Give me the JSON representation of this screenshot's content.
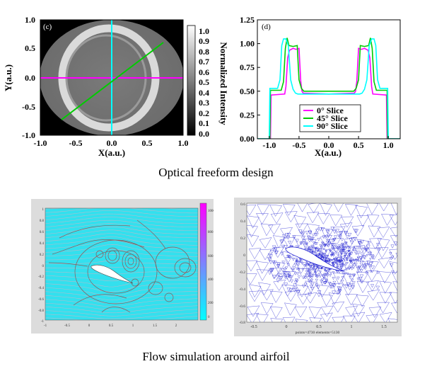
{
  "captions": {
    "top": "Optical freeform design",
    "bottom": "Flow simulation around airfoil"
  },
  "chart_data": [
    {
      "type": "heatmap",
      "panel_label": "(c)",
      "xlabel": "X(a.u.)",
      "ylabel": "Y(a.u.)",
      "xlim": [
        -1.0,
        1.0
      ],
      "ylim": [
        -1.0,
        1.0
      ],
      "xticks": [
        "-1.0",
        "-0.5",
        "0.0",
        "0.5",
        "1.0"
      ],
      "yticks": [
        "1.0",
        "0.5",
        "0.0",
        "-0.5",
        "-1.0"
      ],
      "colorbar": {
        "label": "Normalized Intensity",
        "ticks": [
          "1.0",
          "0.9",
          "0.8",
          "0.7",
          "0.6",
          "0.5",
          "0.4",
          "0.3",
          "0.2",
          "0.1",
          "0.0"
        ]
      },
      "slice_lines": [
        {
          "color": "#ff00ff",
          "from": [
            -1.0,
            0.0
          ],
          "to": [
            1.0,
            0.0
          ]
        },
        {
          "color": "#00ffff",
          "from": [
            0.0,
            -1.0
          ],
          "to": [
            0.0,
            1.0
          ]
        },
        {
          "color": "#00cc00",
          "from": [
            -0.7,
            -0.6
          ],
          "to": [
            0.72,
            0.62
          ]
        }
      ],
      "colors": {
        "background": "#000000",
        "ellipse": "#737373",
        "ring": "#dedede"
      }
    },
    {
      "type": "line",
      "panel_label": "(d)",
      "xlabel": "X(a.u.)",
      "xlim": [
        -1.2,
        1.2
      ],
      "ylim": [
        0.0,
        1.25
      ],
      "xticks": [
        "-1.0",
        "-0.5",
        "0.0",
        "0.5",
        "1.0"
      ],
      "xtick_values": [
        -1.0,
        -0.5,
        0.0,
        0.5,
        1.0
      ],
      "yticks": [
        "0.00",
        "0.25",
        "0.50",
        "0.75",
        "1.00",
        "1.25"
      ],
      "ytick_values": [
        0.0,
        0.25,
        0.5,
        0.75,
        1.0,
        1.25
      ],
      "legend": {
        "position": "bottom-center",
        "entries": [
          "0° Slice",
          "45° Slice",
          "90° Slice"
        ]
      },
      "series": [
        {
          "name": "0° Slice",
          "color": "#ff00ff",
          "x": [
            -1.2,
            -0.98,
            -0.97,
            -0.74,
            -0.72,
            -0.69,
            -0.66,
            -0.6,
            -0.55,
            -0.5,
            -0.47,
            -0.45,
            -0.43,
            0.0,
            0.43,
            0.45,
            0.47,
            0.5,
            0.55,
            0.6,
            0.66,
            0.69,
            0.72,
            0.74,
            0.97,
            0.98,
            1.2
          ],
          "y": [
            0.0,
            0.0,
            0.46,
            0.47,
            0.55,
            0.85,
            0.93,
            0.95,
            0.94,
            0.95,
            0.6,
            0.5,
            0.48,
            0.47,
            0.48,
            0.5,
            0.6,
            0.95,
            0.94,
            0.95,
            0.93,
            0.85,
            0.55,
            0.47,
            0.46,
            0.0,
            0.0
          ]
        },
        {
          "name": "45° Slice",
          "color": "#00cc00",
          "x": [
            -1.2,
            -0.99,
            -0.98,
            -0.8,
            -0.76,
            -0.73,
            -0.7,
            -0.67,
            -0.6,
            -0.53,
            -0.5,
            -0.46,
            -0.42,
            0.0,
            0.42,
            0.46,
            0.5,
            0.53,
            0.6,
            0.67,
            0.7,
            0.73,
            0.76,
            0.8,
            0.98,
            0.99,
            1.2
          ],
          "y": [
            0.0,
            0.0,
            0.51,
            0.51,
            0.6,
            0.95,
            1.06,
            0.98,
            0.97,
            0.98,
            0.62,
            0.53,
            0.5,
            0.5,
            0.5,
            0.53,
            0.62,
            0.98,
            0.97,
            0.98,
            1.06,
            0.95,
            0.6,
            0.51,
            0.51,
            0.0,
            0.0
          ]
        },
        {
          "name": "90° Slice",
          "color": "#00ffff",
          "x": [
            -1.2,
            -1.0,
            -0.99,
            -0.86,
            -0.82,
            -0.79,
            -0.76,
            -0.72,
            -0.68,
            -0.64,
            -0.6,
            -0.56,
            -0.52,
            0.0,
            0.52,
            0.56,
            0.6,
            0.64,
            0.68,
            0.72,
            0.76,
            0.79,
            0.82,
            0.86,
            0.99,
            1.0,
            1.2
          ],
          "y": [
            0.0,
            0.0,
            0.53,
            0.53,
            0.62,
            0.98,
            1.05,
            1.05,
            0.98,
            0.62,
            0.52,
            0.48,
            0.47,
            0.47,
            0.47,
            0.48,
            0.52,
            0.62,
            0.98,
            1.05,
            1.05,
            0.98,
            0.62,
            0.53,
            0.53,
            0.0,
            0.0
          ]
        }
      ]
    },
    {
      "type": "heatmap",
      "xlim": [
        -1,
        2.5
      ],
      "ylim": [
        -1,
        1
      ],
      "xticks": [
        "-1",
        "-0.5",
        "0",
        "0.5",
        "1",
        "1.5",
        "2"
      ],
      "yticks": [
        "1",
        "0.8",
        "0.6",
        "0.4",
        "0.2",
        "0",
        "-0.2",
        "-0.4",
        "-0.6",
        "-0.8",
        "-1"
      ],
      "colorbar": {
        "ticks": [
          "1000",
          "800",
          "600",
          "400",
          "200",
          "0"
        ]
      },
      "colors": {
        "field": "#33e0ee",
        "streamline": "#b9b9c9",
        "contour": "#8a5a5a",
        "cmap_top": "#ff00ff",
        "cmap_bottom": "#00ffff"
      }
    },
    {
      "type": "scatter",
      "xlim": [
        -0.6,
        1.7
      ],
      "ylim": [
        -0.8,
        0.6
      ],
      "xticks": [
        "-0.5",
        "0",
        "0.5",
        "1",
        "1.5"
      ],
      "yticks": [
        "0.6",
        "0.4",
        "0.2",
        "0",
        "-0.2",
        "-0.4",
        "-0.6",
        "-0.8"
      ],
      "footer": "points=4730  elements=5130",
      "colors": {
        "mesh": "#1a1ad0"
      }
    }
  ]
}
